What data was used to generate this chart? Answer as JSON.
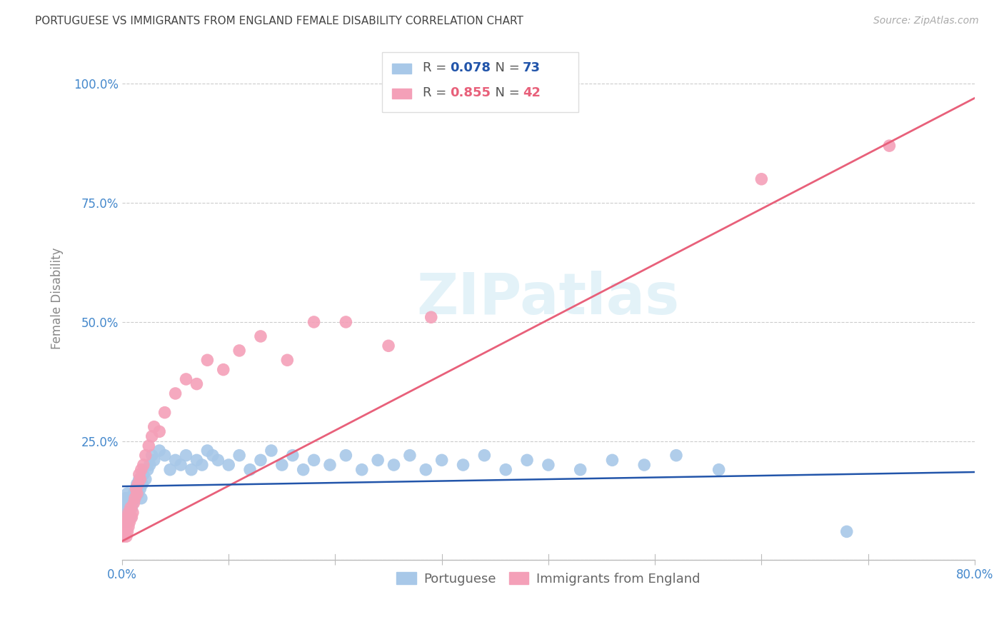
{
  "title": "PORTUGUESE VS IMMIGRANTS FROM ENGLAND FEMALE DISABILITY CORRELATION CHART",
  "source": "Source: ZipAtlas.com",
  "ylabel": "Female Disability",
  "xrange": [
    0.0,
    0.8
  ],
  "yrange": [
    0.0,
    1.1
  ],
  "ytick_vals": [
    0.0,
    0.25,
    0.5,
    0.75,
    1.0
  ],
  "ytick_labels": [
    "",
    "25.0%",
    "50.0%",
    "75.0%",
    "100.0%"
  ],
  "watermark_text": "ZIPatlas",
  "blue_scatter_color": "#a8c8e8",
  "pink_scatter_color": "#f4a0b8",
  "blue_line_color": "#2255aa",
  "pink_line_color": "#e8607a",
  "tick_color": "#4488cc",
  "ylabel_color": "#888888",
  "title_color": "#444444",
  "source_color": "#aaaaaa",
  "watermark_color": "#cce8f4",
  "grid_color": "#cccccc",
  "legend_box_color": "#dddddd",
  "portuguese_x": [
    0.001,
    0.001,
    0.002,
    0.002,
    0.003,
    0.003,
    0.004,
    0.004,
    0.005,
    0.005,
    0.006,
    0.006,
    0.007,
    0.007,
    0.008,
    0.008,
    0.009,
    0.01,
    0.011,
    0.012,
    0.013,
    0.014,
    0.015,
    0.016,
    0.017,
    0.018,
    0.019,
    0.02,
    0.022,
    0.024,
    0.026,
    0.028,
    0.03,
    0.035,
    0.04,
    0.045,
    0.05,
    0.055,
    0.06,
    0.065,
    0.07,
    0.075,
    0.08,
    0.085,
    0.09,
    0.1,
    0.11,
    0.12,
    0.13,
    0.14,
    0.15,
    0.16,
    0.17,
    0.18,
    0.195,
    0.21,
    0.225,
    0.24,
    0.255,
    0.27,
    0.285,
    0.3,
    0.32,
    0.34,
    0.36,
    0.38,
    0.4,
    0.43,
    0.46,
    0.49,
    0.52,
    0.56,
    0.68
  ],
  "portuguese_y": [
    0.12,
    0.09,
    0.11,
    0.08,
    0.13,
    0.1,
    0.12,
    0.08,
    0.14,
    0.1,
    0.11,
    0.09,
    0.13,
    0.1,
    0.12,
    0.09,
    0.11,
    0.12,
    0.14,
    0.13,
    0.15,
    0.16,
    0.14,
    0.17,
    0.15,
    0.13,
    0.16,
    0.18,
    0.17,
    0.19,
    0.2,
    0.22,
    0.21,
    0.23,
    0.22,
    0.19,
    0.21,
    0.2,
    0.22,
    0.19,
    0.21,
    0.2,
    0.23,
    0.22,
    0.21,
    0.2,
    0.22,
    0.19,
    0.21,
    0.23,
    0.2,
    0.22,
    0.19,
    0.21,
    0.2,
    0.22,
    0.19,
    0.21,
    0.2,
    0.22,
    0.19,
    0.21,
    0.2,
    0.22,
    0.19,
    0.21,
    0.2,
    0.19,
    0.21,
    0.2,
    0.22,
    0.19,
    0.06
  ],
  "england_x": [
    0.001,
    0.002,
    0.003,
    0.004,
    0.004,
    0.005,
    0.005,
    0.006,
    0.006,
    0.007,
    0.008,
    0.009,
    0.01,
    0.011,
    0.012,
    0.013,
    0.014,
    0.015,
    0.016,
    0.017,
    0.018,
    0.02,
    0.022,
    0.025,
    0.028,
    0.03,
    0.035,
    0.04,
    0.05,
    0.06,
    0.07,
    0.08,
    0.095,
    0.11,
    0.13,
    0.155,
    0.18,
    0.21,
    0.25,
    0.29,
    0.6,
    0.72
  ],
  "england_y": [
    0.05,
    0.07,
    0.06,
    0.08,
    0.05,
    0.09,
    0.06,
    0.1,
    0.07,
    0.08,
    0.11,
    0.09,
    0.1,
    0.12,
    0.13,
    0.15,
    0.14,
    0.16,
    0.18,
    0.17,
    0.19,
    0.2,
    0.22,
    0.24,
    0.26,
    0.28,
    0.27,
    0.31,
    0.35,
    0.38,
    0.37,
    0.42,
    0.4,
    0.44,
    0.47,
    0.42,
    0.5,
    0.5,
    0.45,
    0.51,
    0.8,
    0.87
  ],
  "pink_line_x0": 0.0,
  "pink_line_y0": 0.04,
  "pink_line_x1": 0.8,
  "pink_line_y1": 0.97,
  "blue_line_x0": 0.0,
  "blue_line_y0": 0.155,
  "blue_line_x1": 0.8,
  "blue_line_y1": 0.185
}
